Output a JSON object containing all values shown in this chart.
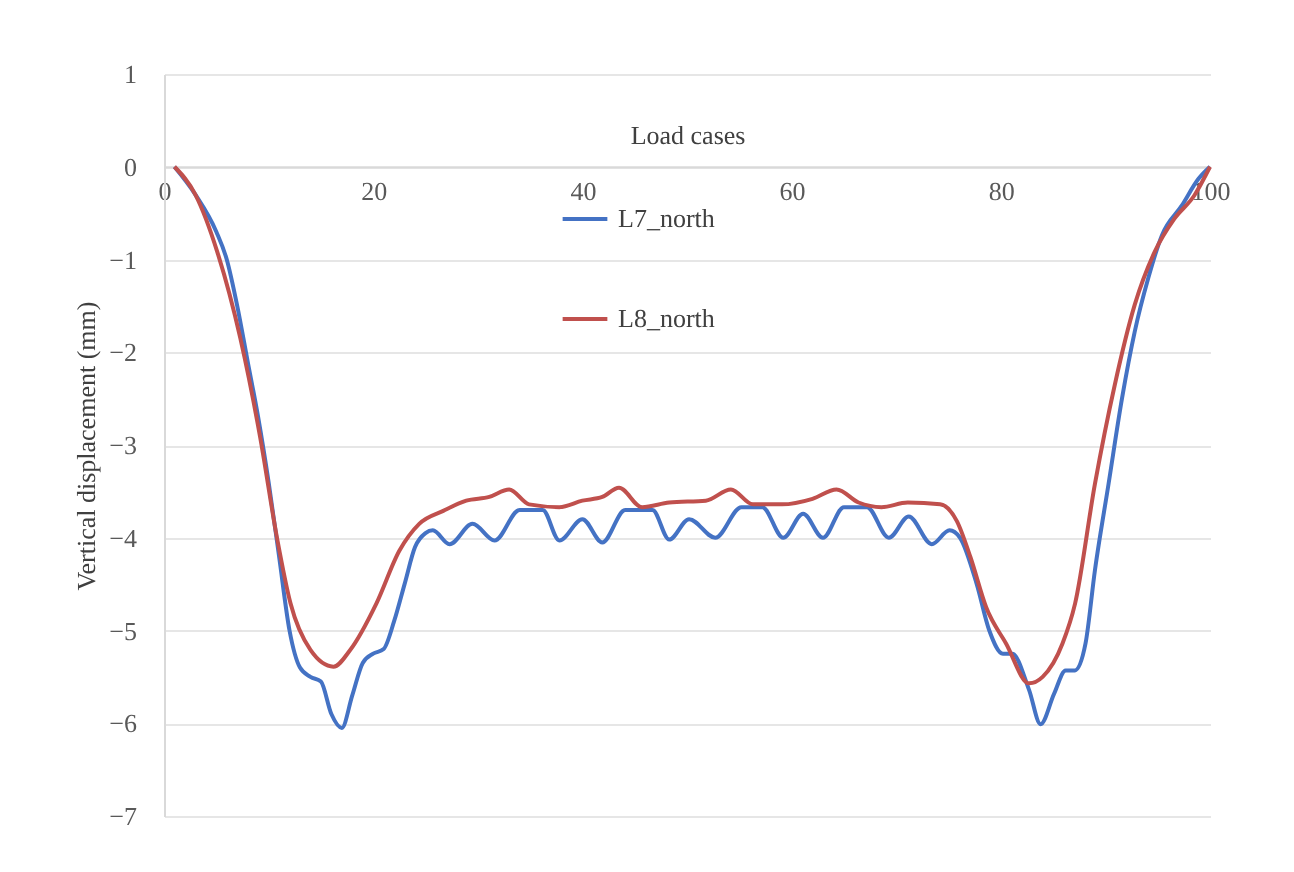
{
  "chart_data": {
    "type": "line",
    "xlabel": "Load cases",
    "ylabel": "Vertical displacement (mm)",
    "xlim": [
      0,
      100
    ],
    "ylim": [
      -7,
      1
    ],
    "xticks": [
      0,
      20,
      40,
      60,
      80,
      100
    ],
    "yticks": [
      1,
      0,
      -1,
      -2,
      -3,
      -4,
      -5,
      -6,
      -7
    ],
    "grid": "y",
    "legend": "top",
    "line_style": "solid",
    "marker": "none",
    "series": [
      {
        "name": "L7_north",
        "color": "#4472c4",
        "x": [
          1,
          3,
          5,
          6,
          7,
          8,
          9,
          10,
          11,
          12,
          13,
          14,
          15,
          16,
          17,
          18,
          19,
          20,
          21,
          22,
          23,
          24,
          25,
          25.7,
          27.3,
          29.5,
          31.6,
          34,
          36.2,
          37.8,
          40,
          41.9,
          44.1,
          46.7,
          48.3,
          50.2,
          52.7,
          55.2,
          57.2,
          59.2,
          61.1,
          63.0,
          65.0,
          67.2,
          69.3,
          71.2,
          73.4,
          75.1,
          76.1,
          77.7,
          78.9,
          80.2,
          81.1,
          82.7,
          83.8,
          85.1,
          86.2,
          87.1,
          88.1,
          89.0,
          90.3,
          91.6,
          92.8,
          94.1,
          95.4,
          97.3,
          98.9,
          100
        ],
        "values": [
          0,
          -0.3,
          -0.7,
          -1.0,
          -1.5,
          -2.1,
          -2.7,
          -3.4,
          -4.2,
          -5.0,
          -5.4,
          -5.5,
          -5.55,
          -5.9,
          -6.05,
          -5.7,
          -5.35,
          -5.25,
          -5.2,
          -4.9,
          -4.5,
          -4.1,
          -3.95,
          -3.92,
          -4.07,
          -3.85,
          -4.03,
          -3.7,
          -3.7,
          -4.03,
          -3.8,
          -4.05,
          -3.7,
          -3.7,
          -4.02,
          -3.8,
          -4.0,
          -3.67,
          -3.67,
          -4.0,
          -3.74,
          -4.0,
          -3.67,
          -3.67,
          -4.0,
          -3.77,
          -4.07,
          -3.92,
          -4.0,
          -4.5,
          -5.0,
          -5.25,
          -5.25,
          -5.64,
          -6.01,
          -5.68,
          -5.43,
          -5.43,
          -5.14,
          -4.35,
          -3.42,
          -2.49,
          -1.78,
          -1.2,
          -0.74,
          -0.42,
          -0.13,
          0
        ]
      },
      {
        "name": "L8_north",
        "color": "#c0504d",
        "x": [
          1,
          3,
          5.1,
          7.3,
          9.2,
          10.8,
          12.1,
          14.0,
          16.2,
          17.8,
          20.3,
          22.5,
          24.4,
          26.7,
          28.9,
          31.1,
          33.0,
          34.9,
          37.8,
          40,
          41.9,
          43.5,
          45.7,
          48.3,
          51.8,
          54.2,
          56.3,
          59.1,
          62.0,
          64.3,
          66.4,
          68.6,
          71.1,
          74.2,
          75.8,
          77.1,
          78.6,
          80.5,
          82.7,
          84.0,
          85.9,
          87.1,
          89.0,
          90.9,
          92.8,
          94.7,
          96.6,
          98.5,
          100
        ],
        "values": [
          0,
          -0.3,
          -0.92,
          -1.85,
          -2.92,
          -4.0,
          -4.71,
          -5.21,
          -5.39,
          -5.21,
          -4.71,
          -4.14,
          -3.85,
          -3.71,
          -3.6,
          -3.56,
          -3.48,
          -3.64,
          -3.67,
          -3.6,
          -3.56,
          -3.46,
          -3.67,
          -3.62,
          -3.6,
          -3.48,
          -3.64,
          -3.64,
          -3.58,
          -3.48,
          -3.62,
          -3.67,
          -3.62,
          -3.64,
          -3.82,
          -4.21,
          -4.75,
          -5.14,
          -5.57,
          -5.5,
          -5.14,
          -4.71,
          -3.42,
          -2.35,
          -1.49,
          -0.92,
          -0.56,
          -0.31,
          0
        ]
      }
    ]
  }
}
